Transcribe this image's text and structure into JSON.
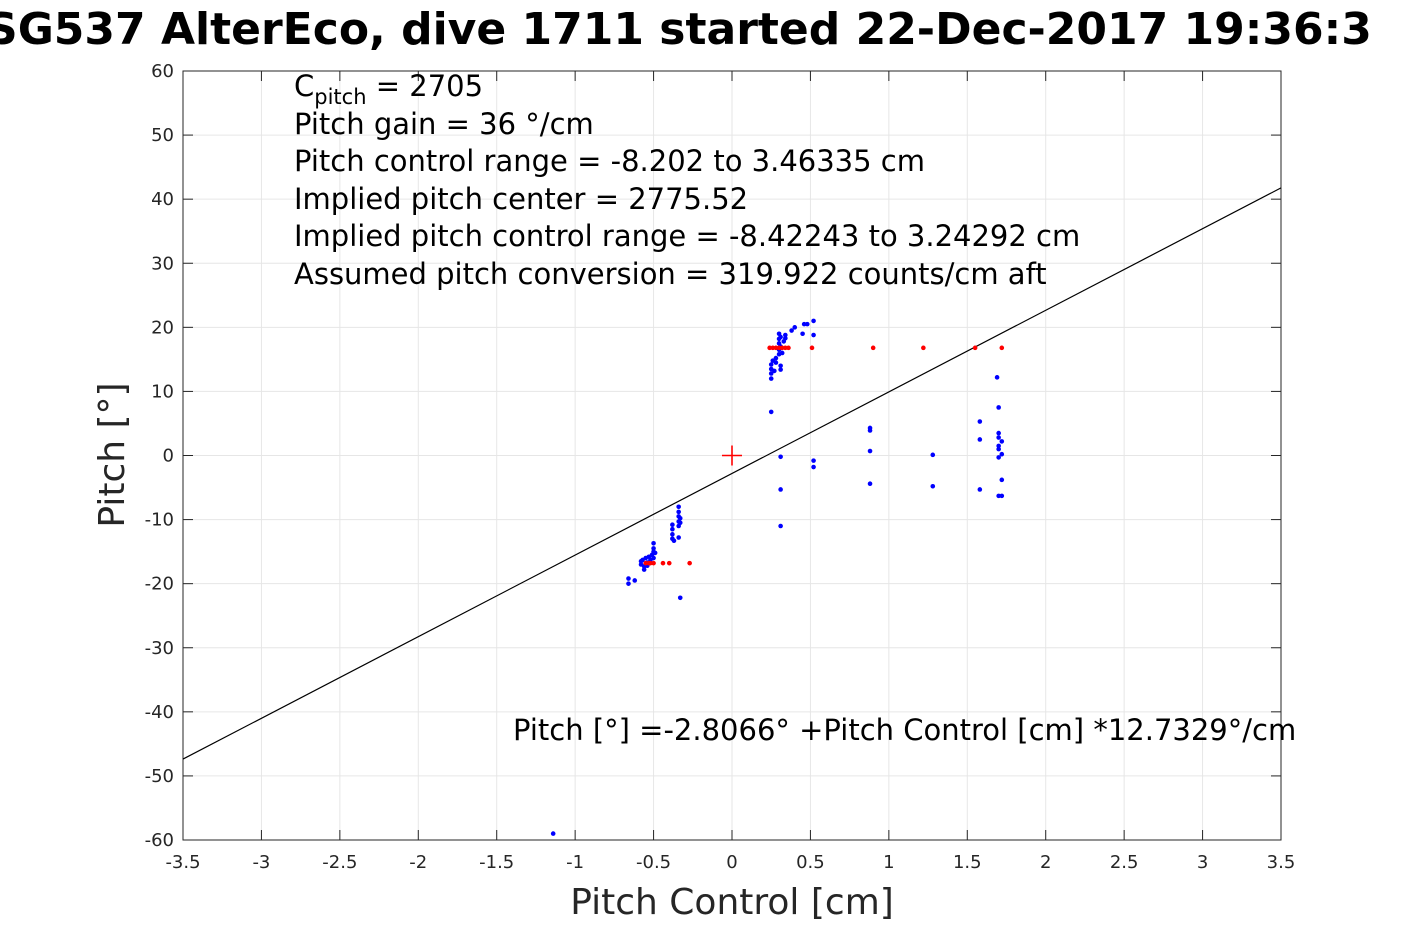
{
  "title": "SG537 AlterEco, dive 1711 started 22-Dec-2017 19:36:3",
  "annotations": {
    "c_pitch_label": "C",
    "c_pitch_sub": "pitch",
    "c_pitch_value": " = 2705",
    "pitch_gain": "Pitch gain = 36 °/cm",
    "pitch_control_range": "Pitch control range = -8.202 to 3.46335 cm",
    "implied_center": "Implied pitch center = 2775.52",
    "implied_range": "Implied pitch control range = -8.42243 to 3.24292 cm",
    "conversion": "Assumed pitch conversion = 319.922 counts/cm aft",
    "equation": "Pitch [°] =-2.8066° +Pitch Control [cm] *12.7329°/cm"
  },
  "colors": {
    "observed": "#0000ff",
    "binned": "#ff0000",
    "fit_line": "#000000",
    "grid": "#e6e6e6",
    "center_marker": "#ff0000"
  },
  "chart_data": {
    "type": "scatter",
    "title": "SG537 AlterEco, dive 1711 started 22-Dec-2017 19:36:3",
    "xlabel": "Pitch Control [cm]",
    "ylabel": "Pitch [°]",
    "xlim": [
      -3.5,
      3.5
    ],
    "ylim": [
      -60,
      60
    ],
    "xticks": [
      "-3.5",
      "-3",
      "-2.5",
      "-2",
      "-1.5",
      "-1",
      "-0.5",
      "0",
      "0.5",
      "1",
      "1.5",
      "2",
      "2.5",
      "3",
      "3.5"
    ],
    "yticks": [
      "-60",
      "-50",
      "-40",
      "-30",
      "-20",
      "-10",
      "0",
      "10",
      "20",
      "30",
      "40",
      "50",
      "60"
    ],
    "grid": true,
    "fit": {
      "intercept": -2.8066,
      "slope": 12.7329
    },
    "center_marker": {
      "x": 0,
      "y": 0
    },
    "series": [
      {
        "color": "#0000ff",
        "points": [
          [
            -1.14,
            -59
          ],
          [
            -0.66,
            -19.2
          ],
          [
            -0.66,
            -20
          ],
          [
            -0.62,
            -19.5
          ],
          [
            -0.58,
            -16.5
          ],
          [
            -0.58,
            -17
          ],
          [
            -0.57,
            -16.3
          ],
          [
            -0.56,
            -17.3
          ],
          [
            -0.56,
            -17.8
          ],
          [
            -0.55,
            -16
          ],
          [
            -0.54,
            -16.7
          ],
          [
            -0.54,
            -17.2
          ],
          [
            -0.53,
            -15.8
          ],
          [
            -0.52,
            -16.3
          ],
          [
            -0.51,
            -15.5
          ],
          [
            -0.5,
            -16
          ],
          [
            -0.5,
            -15
          ],
          [
            -0.5,
            -14.5
          ],
          [
            -0.5,
            -13.7
          ],
          [
            -0.49,
            -15.2
          ],
          [
            -0.38,
            -13
          ],
          [
            -0.38,
            -12.3
          ],
          [
            -0.38,
            -11.5
          ],
          [
            -0.38,
            -10.8
          ],
          [
            -0.37,
            -13.3
          ],
          [
            -0.34,
            -12.8
          ],
          [
            -0.34,
            -11
          ],
          [
            -0.34,
            -10.3
          ],
          [
            -0.34,
            -9.5
          ],
          [
            -0.34,
            -8.8
          ],
          [
            -0.34,
            -8
          ],
          [
            -0.33,
            -9.8
          ],
          [
            -0.33,
            -10.5
          ],
          [
            -0.33,
            -22.2
          ],
          [
            0.25,
            6.8
          ],
          [
            0.25,
            12
          ],
          [
            0.25,
            12.8
          ],
          [
            0.25,
            13.5
          ],
          [
            0.25,
            14.2
          ],
          [
            0.26,
            14.8
          ],
          [
            0.27,
            13.2
          ],
          [
            0.28,
            14.5
          ],
          [
            0.28,
            15.2
          ],
          [
            0.3,
            15.8
          ],
          [
            0.3,
            16.5
          ],
          [
            0.3,
            17.5
          ],
          [
            0.3,
            18.2
          ],
          [
            0.3,
            19
          ],
          [
            0.31,
            17
          ],
          [
            0.31,
            18.5
          ],
          [
            0.31,
            14
          ],
          [
            0.31,
            13.4
          ],
          [
            0.31,
            -0.2
          ],
          [
            0.31,
            -5.3
          ],
          [
            0.31,
            -11
          ],
          [
            0.32,
            16
          ],
          [
            0.33,
            17.8
          ],
          [
            0.34,
            18.3
          ],
          [
            0.34,
            18.8
          ],
          [
            0.38,
            19.5
          ],
          [
            0.4,
            20
          ],
          [
            0.45,
            19
          ],
          [
            0.46,
            20.5
          ],
          [
            0.48,
            20.5
          ],
          [
            0.52,
            21
          ],
          [
            0.52,
            18.8
          ],
          [
            0.52,
            -0.8
          ],
          [
            0.52,
            -1.8
          ],
          [
            0.88,
            4.3
          ],
          [
            0.88,
            3.9
          ],
          [
            0.88,
            0.7
          ],
          [
            0.88,
            -4.4
          ],
          [
            1.28,
            0.1
          ],
          [
            1.28,
            -4.8
          ],
          [
            1.58,
            5.3
          ],
          [
            1.58,
            2.5
          ],
          [
            1.58,
            -5.3
          ],
          [
            1.69,
            12.2
          ],
          [
            1.7,
            7.5
          ],
          [
            1.7,
            3.5
          ],
          [
            1.7,
            2.8
          ],
          [
            1.7,
            1.5
          ],
          [
            1.7,
            1.0
          ],
          [
            1.7,
            -0.3
          ],
          [
            1.7,
            -6.3
          ],
          [
            1.72,
            2.2
          ],
          [
            1.72,
            0.2
          ],
          [
            1.72,
            -3.8
          ],
          [
            1.72,
            -6.3
          ]
        ]
      },
      {
        "color": "#ff0000",
        "points": [
          [
            -0.55,
            -16.8
          ],
          [
            -0.53,
            -16.8
          ],
          [
            -0.52,
            -16.8
          ],
          [
            -0.5,
            -16.8
          ],
          [
            -0.44,
            -16.8
          ],
          [
            -0.4,
            -16.8
          ],
          [
            -0.27,
            -16.8
          ],
          [
            0.24,
            16.8
          ],
          [
            0.26,
            16.8
          ],
          [
            0.28,
            16.8
          ],
          [
            0.3,
            16.8
          ],
          [
            0.32,
            16.8
          ],
          [
            0.34,
            16.8
          ],
          [
            0.36,
            16.8
          ],
          [
            0.51,
            16.8
          ],
          [
            0.9,
            16.8
          ],
          [
            1.22,
            16.8
          ],
          [
            1.55,
            16.8
          ],
          [
            1.72,
            16.8
          ]
        ]
      }
    ]
  }
}
